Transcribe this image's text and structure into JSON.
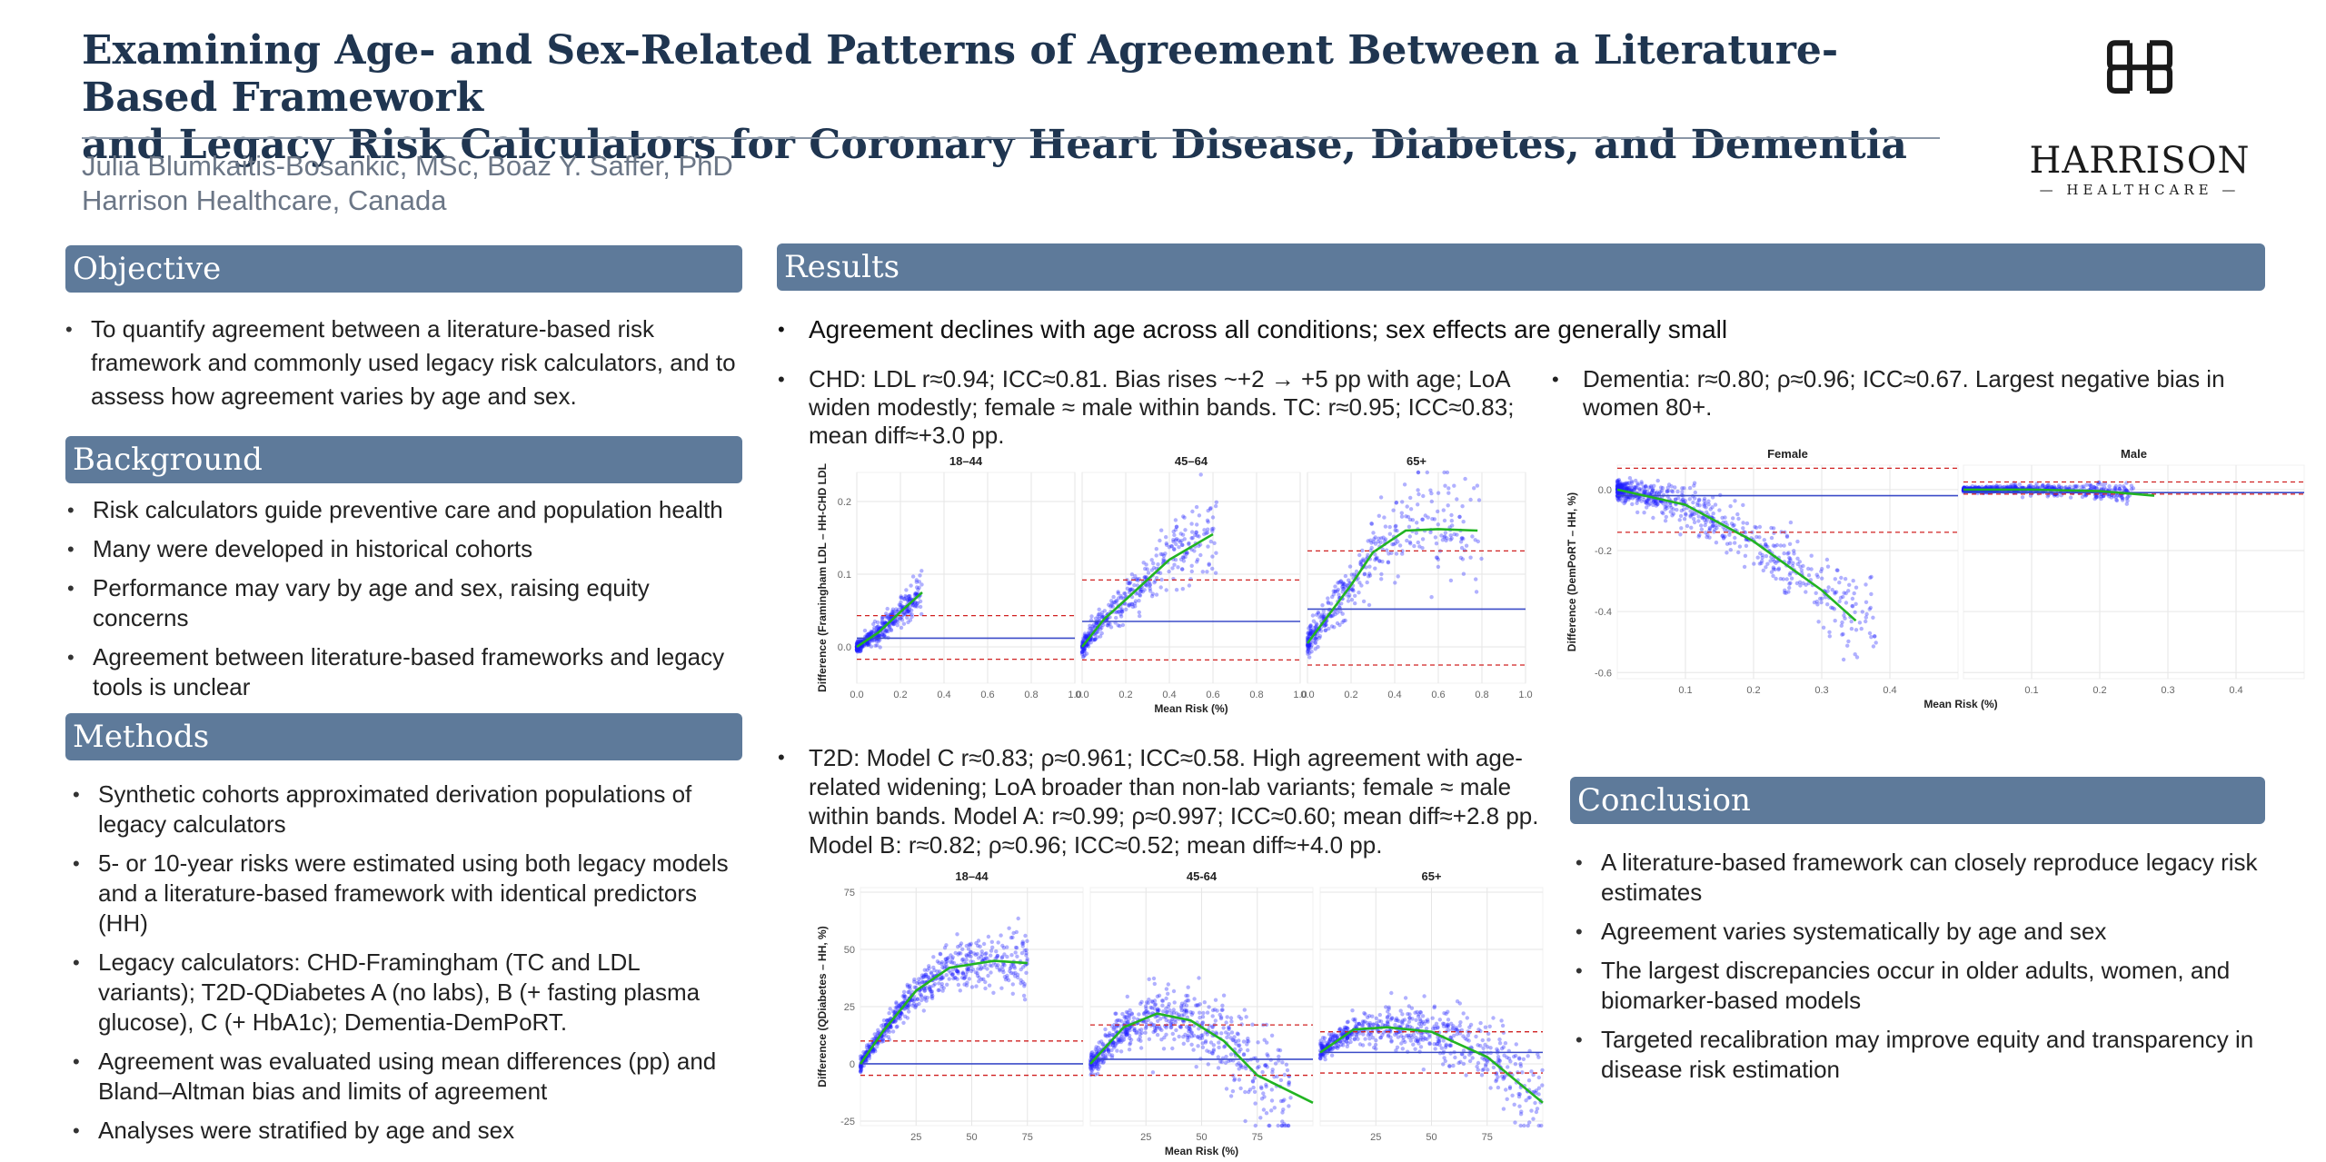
{
  "header": {
    "title_line1": "Examining Age- and Sex-Related Patterns of Agreement Between a Literature-Based Framework",
    "title_line2": "and Legacy Risk Calculators for Coronary Heart Disease, Diabetes, and Dementia",
    "authors": "Julia Blumkaitis-Bosankic, MSc, Boaz Y. Saffer, PhD",
    "affiliation": "Harrison Healthcare, Canada",
    "logo_name": "HARRISON",
    "logo_sub": "HEALTHCARE"
  },
  "sections": {
    "objective": {
      "heading": "Objective",
      "items": [
        "To quantify agreement between a literature-based risk framework and commonly used legacy risk calculators, and to assess how agreement varies by age and sex."
      ]
    },
    "background": {
      "heading": "Background",
      "items": [
        "Risk calculators guide preventive care and population health",
        "Many were developed in historical cohorts",
        "Performance may vary by age and sex, raising equity concerns",
        "Agreement between literature-based frameworks and legacy tools is unclear"
      ]
    },
    "methods": {
      "heading": "Methods",
      "items": [
        "Synthetic cohorts approximated derivation populations of legacy calculators",
        "5- or 10-year risks were estimated using both legacy models and a literature-based framework with identical predictors (HH)",
        "Legacy calculators: CHD-Framingham (TC and LDL variants); T2D-QDiabetes A (no labs), B (+ fasting plasma glucose), C (+ HbA1c); Dementia-DemPoRT.",
        "Agreement was evaluated using mean differences (pp) and Bland–Altman bias and limits of agreement",
        "Analyses were stratified by age and sex"
      ]
    },
    "results": {
      "heading": "Results",
      "lead": "Agreement declines with age across all conditions; sex effects are generally small",
      "chd_label": "CHD:",
      "chd_text": " LDL r≈0.94; ICC≈0.81. Bias rises ~+2 → +5 pp with age; LoA widen modestly; female ≈ male within bands. TC: r≈0.95; ICC≈0.83; mean diff≈+3.0 pp.",
      "t2d_label": "T2D:",
      "t2d_text": " Model C r≈0.83; ρ≈0.961; ICC≈0.58. High agreement with age-related widening; LoA broader than non-lab variants; female ≈ male within bands. Model A: r≈0.99; ρ≈0.997; ICC≈0.60; mean diff≈+2.8 pp. Model B: r≈0.82; ρ≈0.96; ICC≈0.52; mean diff≈+4.0 pp.",
      "dem_label": "Dementia:",
      "dem_text": " r≈0.80; ρ≈0.96; ICC≈0.67. Largest negative bias in women 80+."
    },
    "conclusion": {
      "heading": "Conclusion",
      "items": [
        "A literature-based framework can closely reproduce legacy risk estimates",
        "Agreement varies systematically by age and sex",
        "The largest discrepancies occur in older adults, women, and biomarker-based models",
        "Targeted recalibration may improve equity and transparency in disease risk estimation"
      ]
    }
  },
  "colors": {
    "header_bar": "#5e7a9a",
    "title_text": "#1f3550",
    "points": "#1f1fff",
    "smooth_line": "#22b422",
    "bias_line": "#3b4bc8",
    "loa_line": "#d02020"
  },
  "chart_data": [
    {
      "type": "scatter",
      "id": "chd",
      "xlabel": "Mean Risk (%)",
      "ylabel": "Difference (Framingham LDL – HH-CHD LDL",
      "facets": [
        "18–44",
        "45–64",
        "65+"
      ],
      "xticks": [
        "0.0",
        "0.2",
        "0.4",
        "0.6",
        "0.8",
        "1.0"
      ],
      "yticks": [
        "0.0",
        "0.1",
        "0.2"
      ],
      "xlim": [
        0,
        1.0
      ],
      "ylim": [
        -0.05,
        0.24
      ],
      "panels": [
        {
          "bias": 0.012,
          "loa": [
            -0.017,
            0.043
          ],
          "smooth": [
            [
              0.0,
              0.0
            ],
            [
              0.1,
              0.02
            ],
            [
              0.2,
              0.048
            ],
            [
              0.3,
              0.075
            ]
          ]
        },
        {
          "bias": 0.035,
          "loa": [
            -0.018,
            0.092
          ],
          "smooth": [
            [
              0.0,
              0.0
            ],
            [
              0.1,
              0.038
            ],
            [
              0.2,
              0.065
            ],
            [
              0.4,
              0.12
            ],
            [
              0.6,
              0.155
            ]
          ]
        },
        {
          "bias": 0.052,
          "loa": [
            -0.025,
            0.132
          ],
          "smooth": [
            [
              0.0,
              0.005
            ],
            [
              0.1,
              0.045
            ],
            [
              0.2,
              0.085
            ],
            [
              0.3,
              0.13
            ],
            [
              0.45,
              0.16
            ],
            [
              0.6,
              0.162
            ],
            [
              0.78,
              0.16
            ]
          ]
        }
      ]
    },
    {
      "type": "scatter",
      "id": "t2d",
      "xlabel": "Mean Risk (%)",
      "ylabel": "Difference (QDiabetes – HH, %)",
      "facets": [
        "18–44",
        "45-64",
        "65+"
      ],
      "xticks": [
        "25",
        "50",
        "75"
      ],
      "yticks": [
        "-25",
        "0",
        "25",
        "50",
        "75"
      ],
      "xlim": [
        0,
        100
      ],
      "ylim": [
        -27,
        77
      ],
      "panels": [
        {
          "bias": 0,
          "loa": [
            -5,
            10
          ],
          "smooth": [
            [
              0,
              0
            ],
            [
              10,
              14
            ],
            [
              25,
              32
            ],
            [
              40,
              42
            ],
            [
              60,
              45
            ],
            [
              75,
              44
            ]
          ]
        },
        {
          "bias": 2,
          "loa": [
            -5,
            17
          ],
          "smooth": [
            [
              0,
              0
            ],
            [
              15,
              16
            ],
            [
              30,
              22
            ],
            [
              45,
              19
            ],
            [
              60,
              10
            ],
            [
              75,
              -5
            ],
            [
              100,
              -17
            ]
          ]
        },
        {
          "bias": 5,
          "loa": [
            -4,
            14
          ],
          "smooth": [
            [
              0,
              5
            ],
            [
              15,
              15
            ],
            [
              30,
              16
            ],
            [
              50,
              14
            ],
            [
              75,
              3
            ],
            [
              100,
              -17
            ]
          ]
        }
      ]
    },
    {
      "type": "scatter",
      "id": "dementia",
      "xlabel": "Mean Risk (%)",
      "ylabel": "Difference (DemPoRT – HH, %)",
      "facets": [
        "Female",
        "Male"
      ],
      "xticks": [
        "0.1",
        "0.2",
        "0.3",
        "0.4"
      ],
      "yticks": [
        "-0.6",
        "-0.4",
        "-0.2",
        "0.0"
      ],
      "xlim": [
        0,
        0.5
      ],
      "ylim": [
        -0.62,
        0.08
      ],
      "panels": [
        {
          "bias": -0.02,
          "loa": [
            -0.14,
            0.07
          ],
          "smooth": [
            [
              0.0,
              0.0
            ],
            [
              0.1,
              -0.05
            ],
            [
              0.2,
              -0.17
            ],
            [
              0.3,
              -0.33
            ],
            [
              0.35,
              -0.43
            ]
          ]
        },
        {
          "bias": -0.01,
          "loa": [
            -0.015,
            0.025
          ],
          "smooth": [
            [
              0.0,
              0.0
            ],
            [
              0.1,
              0.0
            ],
            [
              0.2,
              -0.005
            ],
            [
              0.28,
              -0.02
            ]
          ]
        }
      ]
    }
  ]
}
